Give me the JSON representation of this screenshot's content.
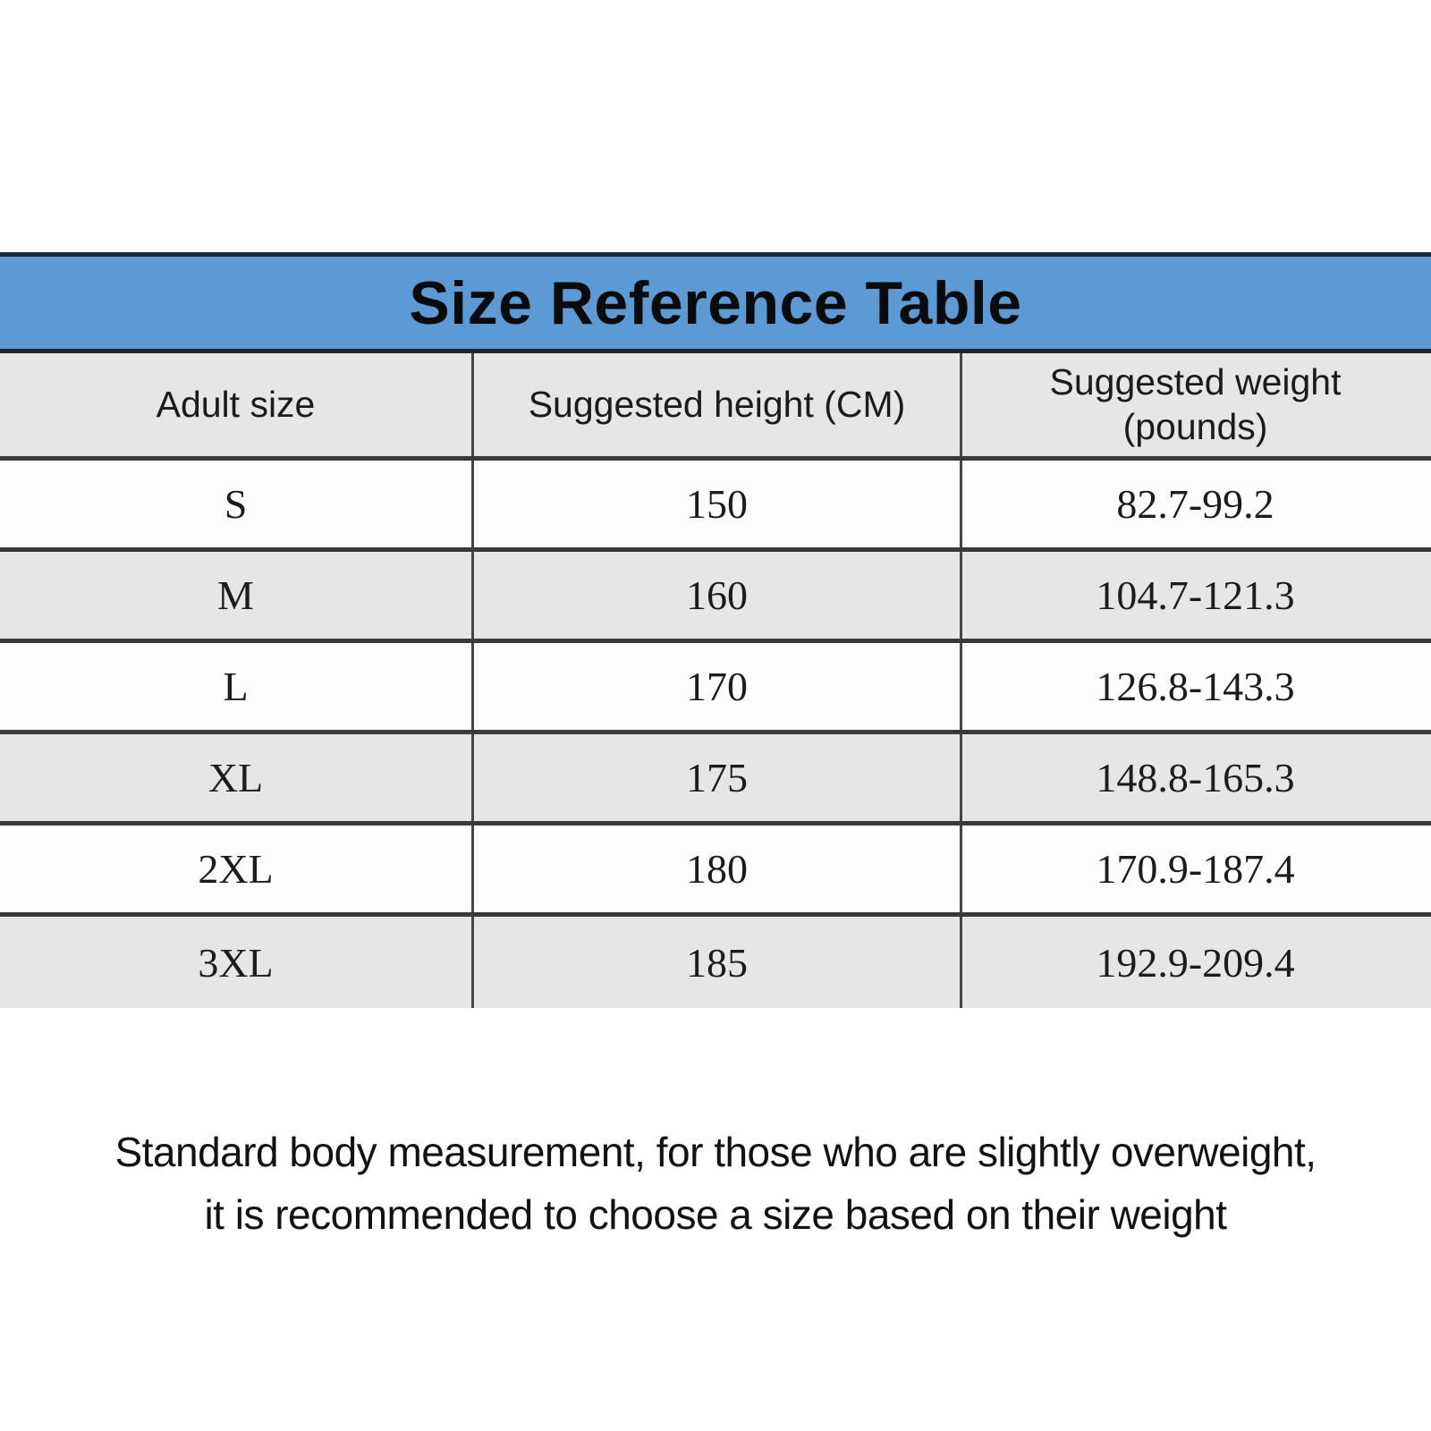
{
  "title_band": {
    "title": "Size Reference Table",
    "background_color": "#5b9ad5",
    "border_color": "#1e2832",
    "text_color": "#0b0b0b"
  },
  "table": {
    "columns": [
      "Adult size",
      "Suggested height (CM)",
      "Suggested weight (pounds)"
    ],
    "rows": [
      {
        "size": "S",
        "height_cm": "150",
        "weight_pounds": "82.7-99.2"
      },
      {
        "size": "M",
        "height_cm": "160",
        "weight_pounds": "104.7-121.3"
      },
      {
        "size": "L",
        "height_cm": "170",
        "weight_pounds": "126.8-143.3"
      },
      {
        "size": "XL",
        "height_cm": "175",
        "weight_pounds": "148.8-165.3"
      },
      {
        "size": "2XL",
        "height_cm": "180",
        "weight_pounds": "170.9-187.4"
      },
      {
        "size": "3XL",
        "height_cm": "185",
        "weight_pounds": "192.9-209.4"
      }
    ],
    "zebra_row_color": "#e8e6e4",
    "plain_row_color": "#fdfdfd",
    "border_color": "#3a3a3a"
  },
  "footer": {
    "lines": [
      "Standard body measurement, for those who are slightly overweight,",
      "it is recommended to choose a size based on their weight"
    ]
  }
}
